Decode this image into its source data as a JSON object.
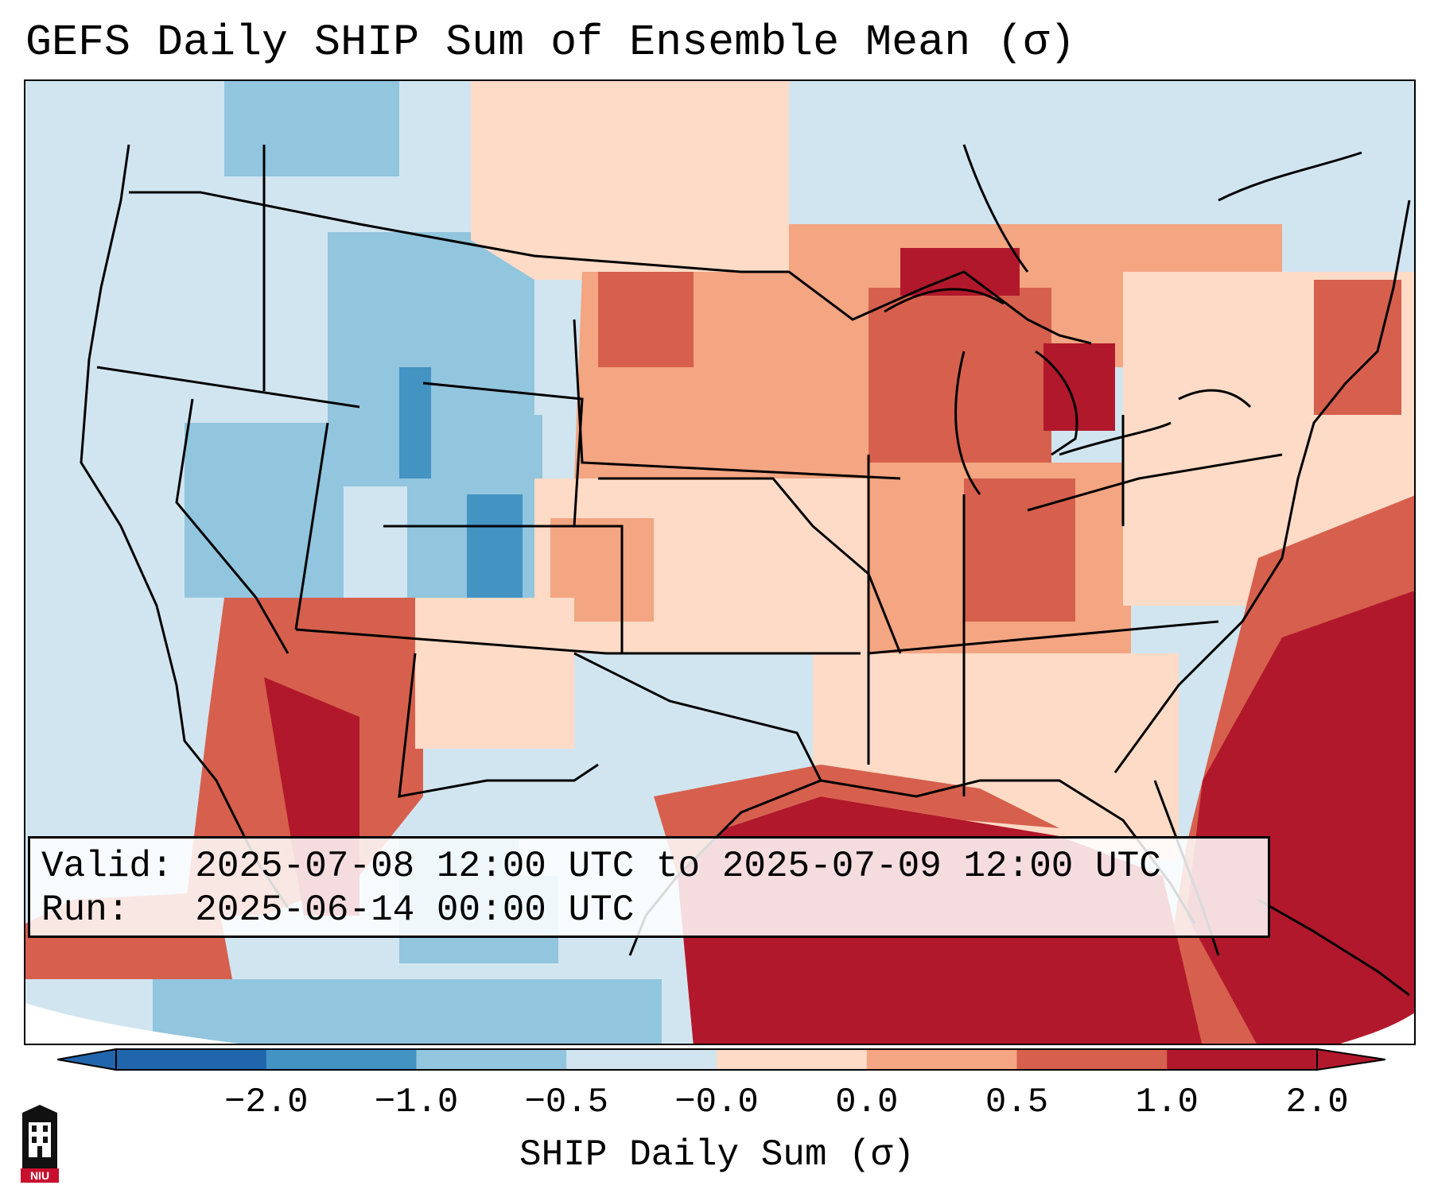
{
  "title": "GEFS Daily SHIP Sum of Ensemble Mean (σ)",
  "info": {
    "valid_line": "Valid: 2025-07-08 12:00 UTC to 2025-07-09 12:00 UTC",
    "run_line": "Run:   2025-06-14 00:00 UTC"
  },
  "colorbar": {
    "label": "SHIP Daily Sum (σ)",
    "ticks": [
      "−2.0",
      "−1.0",
      "−0.5",
      "−0.0",
      "0.0",
      "0.5",
      "1.0",
      "2.0"
    ],
    "colors": [
      "#2166ac",
      "#4393c3",
      "#92c5de",
      "#d1e5f0",
      "#fddbc7",
      "#f4a582",
      "#d6604d",
      "#b2182b"
    ],
    "extend": "both"
  },
  "logo": {
    "text": "NIU",
    "icon": "niu-tower-icon"
  }
}
